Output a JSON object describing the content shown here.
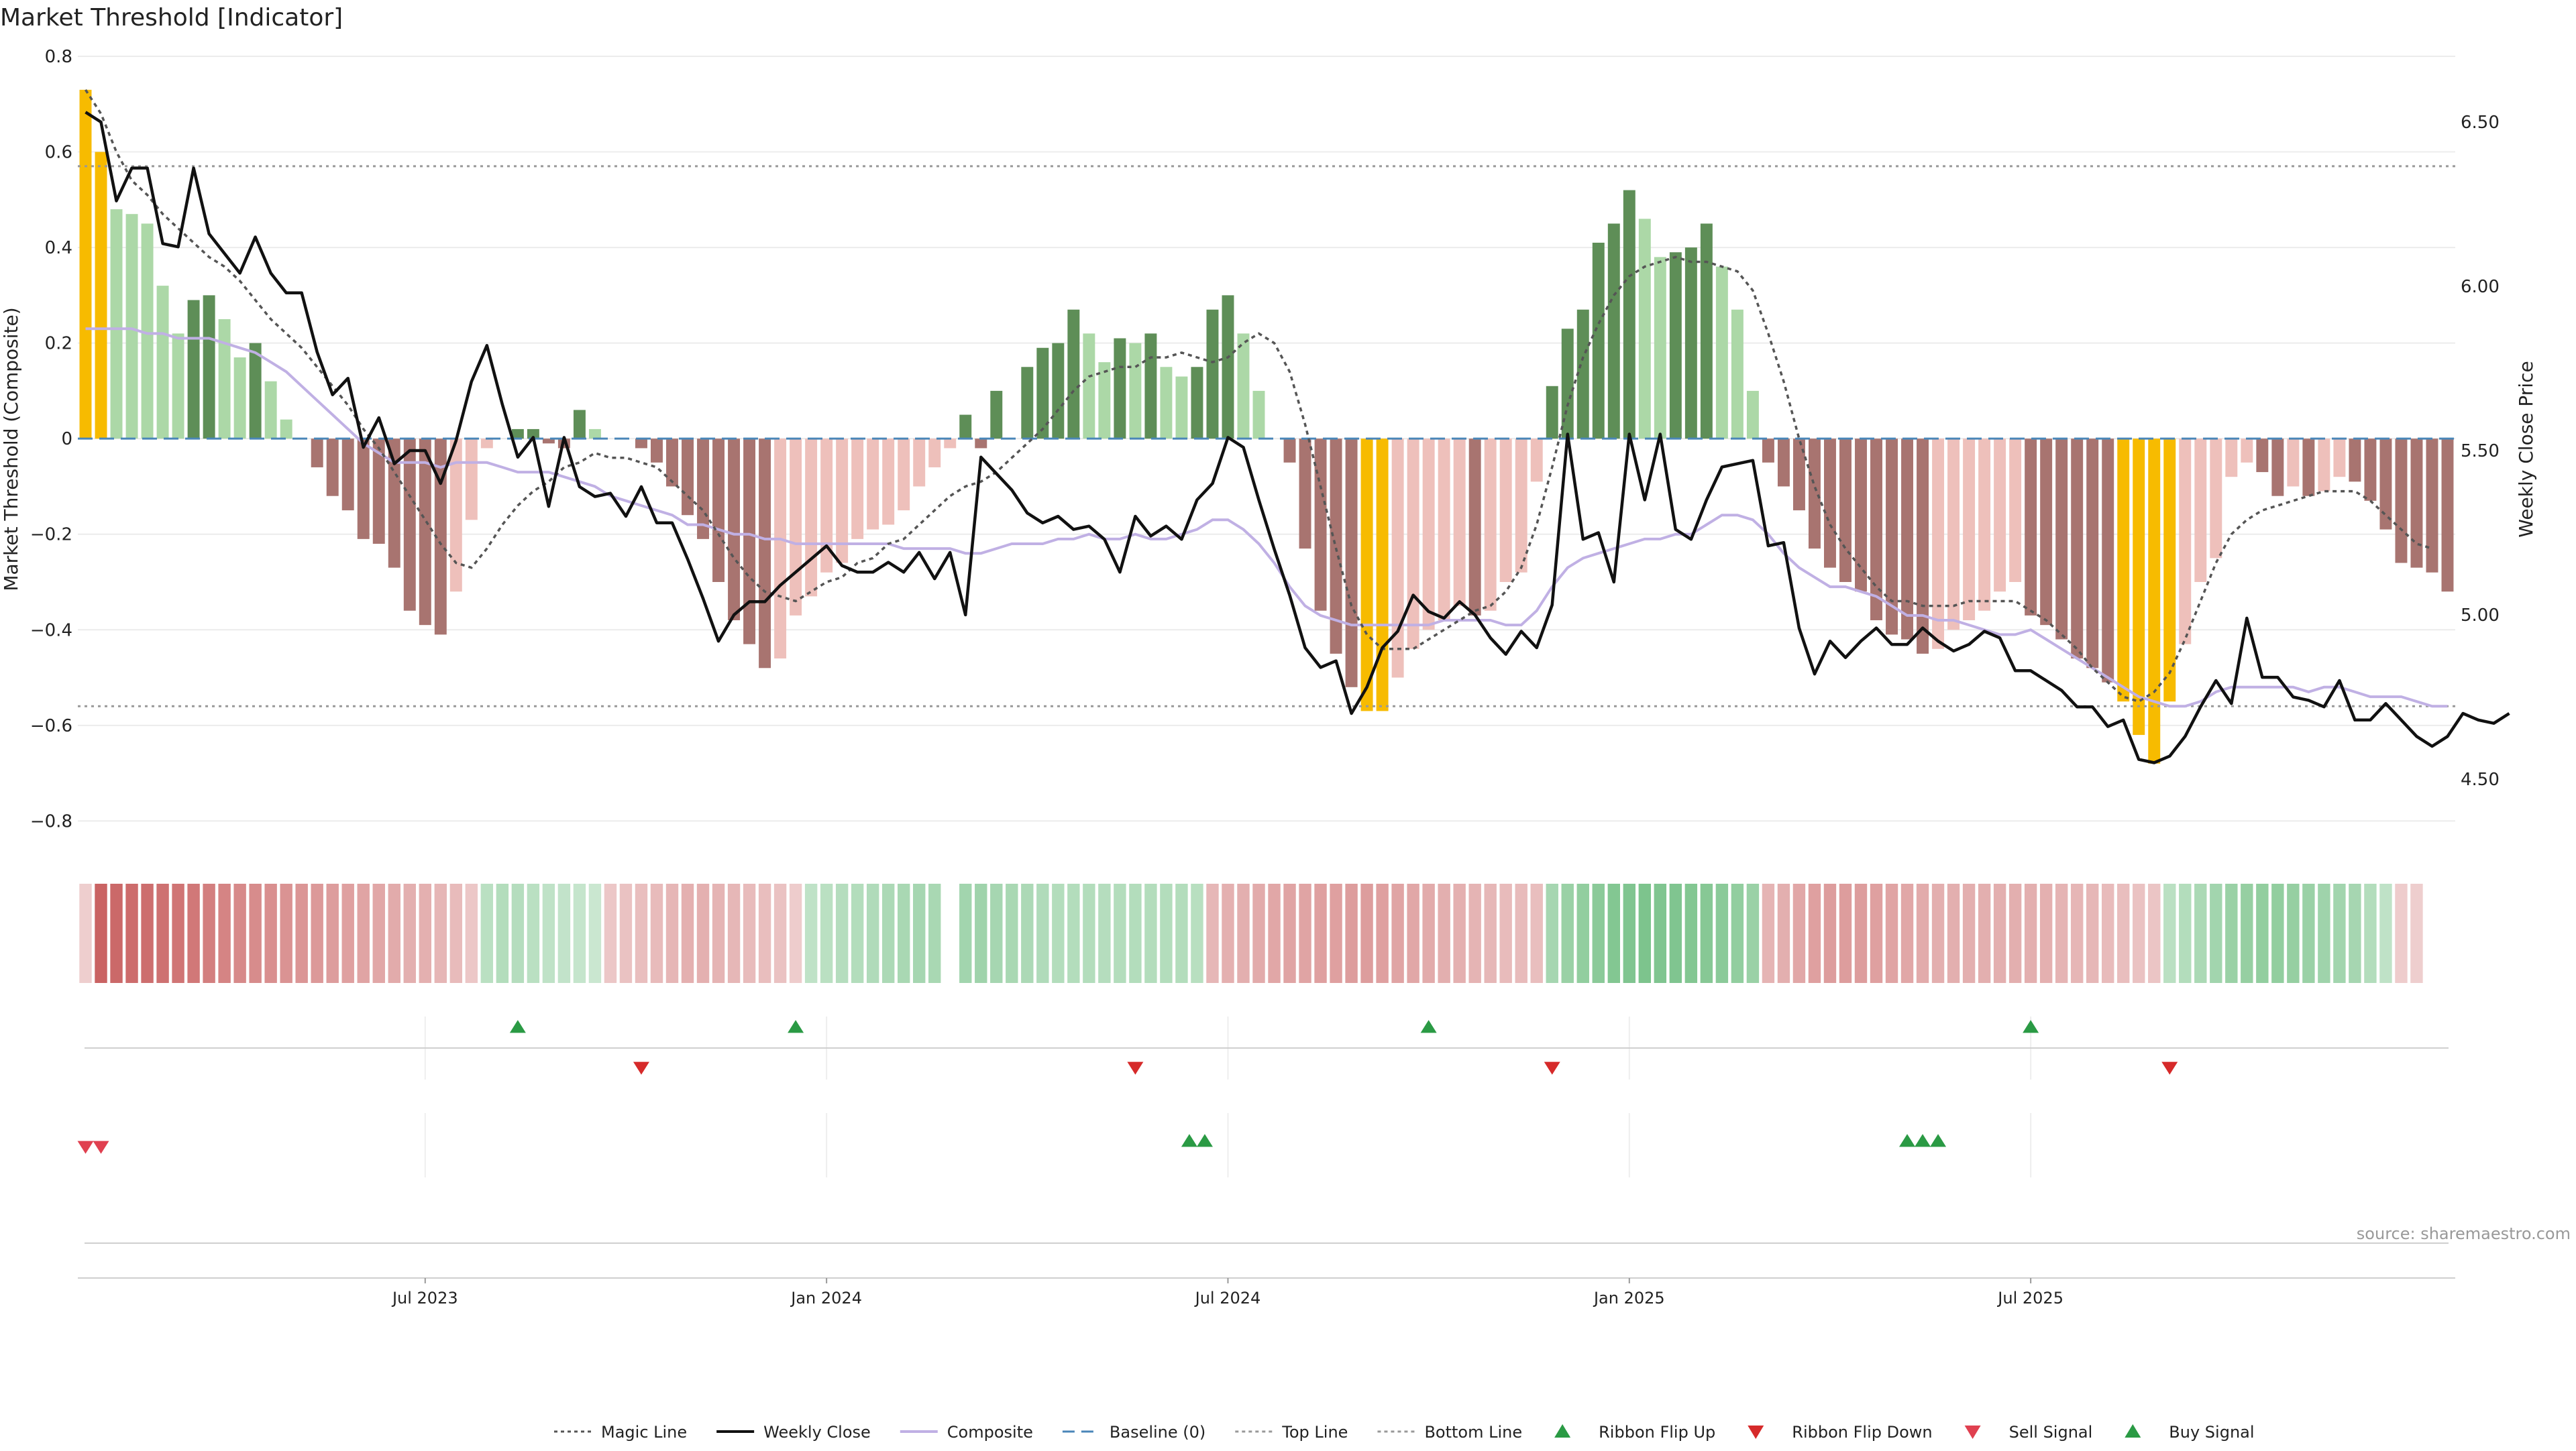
{
  "chart_data": {
    "type": "bar",
    "title": "Market Threshold [Indicator]",
    "ylabel_left": "Market Threshold (Composite)",
    "ylabel_right": "Weekly Close Price",
    "source": "source: sharemaestro.com",
    "ylim_left": [
      -0.85,
      0.8
    ],
    "ylim_right": [
      4.3,
      6.7
    ],
    "yticks_left": [
      "0.8",
      "0.6",
      "0.4",
      "0.2",
      "0",
      "−0.2",
      "−0.4",
      "−0.6",
      "−0.8"
    ],
    "yticks_right": [
      "6.50",
      "6.00",
      "5.50",
      "5.00",
      "4.50"
    ],
    "xticks": [
      {
        "label": "Jul 2023",
        "week": 22
      },
      {
        "label": "Jan 2024",
        "week": 48
      },
      {
        "label": "Jul 2024",
        "week": 74
      },
      {
        "label": "Jan 2025",
        "week": 100
      },
      {
        "label": "Jul 2025",
        "week": 126
      }
    ],
    "top_line": 0.57,
    "bottom_line": -0.56,
    "baseline": 0,
    "composite_bars": [
      0.73,
      0.6,
      0.48,
      0.47,
      0.45,
      0.32,
      0.22,
      0.29,
      0.3,
      0.25,
      0.17,
      0.2,
      0.12,
      0.04,
      0.0,
      -0.06,
      -0.12,
      -0.15,
      -0.21,
      -0.22,
      -0.27,
      -0.36,
      -0.39,
      -0.41,
      -0.32,
      -0.17,
      -0.02,
      0.0,
      0.02,
      0.02,
      -0.01,
      -0.02,
      0.06,
      0.02,
      0.0,
      0.0,
      -0.02,
      -0.05,
      -0.1,
      -0.16,
      -0.21,
      -0.3,
      -0.38,
      -0.43,
      -0.48,
      -0.46,
      -0.37,
      -0.33,
      -0.28,
      -0.26,
      -0.21,
      -0.19,
      -0.18,
      -0.15,
      -0.1,
      -0.06,
      -0.02,
      0.05,
      -0.02,
      0.1,
      0.0,
      0.15,
      0.19,
      0.2,
      0.27,
      0.22,
      0.16,
      0.21,
      0.2,
      0.22,
      0.15,
      0.13,
      0.15,
      0.27,
      0.3,
      0.22,
      0.1,
      0.0,
      -0.05,
      -0.23,
      -0.36,
      -0.45,
      -0.52,
      -0.57,
      -0.57,
      -0.5,
      -0.44,
      -0.4,
      -0.38,
      -0.35,
      -0.37,
      -0.36,
      -0.3,
      -0.28,
      -0.09,
      0.11,
      0.23,
      0.27,
      0.41,
      0.45,
      0.52,
      0.46,
      0.38,
      0.39,
      0.4,
      0.45,
      0.36,
      0.27,
      0.1,
      -0.05,
      -0.1,
      -0.15,
      -0.23,
      -0.27,
      -0.3,
      -0.32,
      -0.38,
      -0.41,
      -0.42,
      -0.45,
      -0.44,
      -0.4,
      -0.38,
      -0.36,
      -0.32,
      -0.3,
      -0.37,
      -0.39,
      -0.42,
      -0.46,
      -0.48,
      -0.51,
      -0.55,
      -0.62,
      -0.68,
      -0.55,
      -0.43,
      -0.3,
      -0.25,
      -0.08,
      -0.05,
      -0.07,
      -0.12,
      -0.1,
      -0.12,
      -0.11,
      -0.08,
      -0.09,
      -0.13,
      -0.19,
      -0.26,
      -0.27,
      -0.28,
      -0.32
    ],
    "series": [
      {
        "name": "Weekly Close",
        "values": [
          6.53,
          6.5,
          6.26,
          6.36,
          6.36,
          6.13,
          6.12,
          6.36,
          6.16,
          6.1,
          6.04,
          6.15,
          6.04,
          5.98,
          5.98,
          5.8,
          5.67,
          5.72,
          5.51,
          5.6,
          5.46,
          5.5,
          5.5,
          5.4,
          5.53,
          5.71,
          5.82,
          5.64,
          5.48,
          5.54,
          5.33,
          5.54,
          5.39,
          5.36,
          5.37,
          5.3,
          5.39,
          5.28,
          5.28,
          5.17,
          5.05,
          4.92,
          5.0,
          5.04,
          5.04,
          5.09,
          5.13,
          5.17,
          5.21,
          5.15,
          5.13,
          5.13,
          5.16,
          5.13,
          5.19,
          5.11,
          5.19,
          5.0,
          5.48,
          5.43,
          5.38,
          5.31,
          5.28,
          5.3,
          5.26,
          5.27,
          5.23,
          5.13,
          5.3,
          5.24,
          5.27,
          5.23,
          5.35,
          5.4,
          5.54,
          5.51,
          5.35,
          5.2,
          5.06,
          4.9,
          4.84,
          4.86,
          4.7,
          4.78,
          4.9,
          4.95,
          5.06,
          5.01,
          4.99,
          5.04,
          5.0,
          4.93,
          4.88,
          4.95,
          4.9,
          5.03,
          5.55,
          5.23,
          5.25,
          5.1,
          5.55,
          5.35,
          5.55,
          5.26,
          5.23,
          5.35,
          5.45,
          5.46,
          5.47,
          5.21,
          5.22,
          4.96,
          4.82,
          4.92,
          4.87,
          4.92,
          4.96,
          4.91,
          4.91,
          4.96,
          4.92,
          4.89,
          4.91,
          4.95,
          4.93,
          4.83,
          4.83,
          4.8,
          4.77,
          4.72,
          4.72,
          4.66,
          4.68,
          4.56,
          4.55,
          4.57,
          4.63,
          4.72,
          4.8,
          4.73,
          4.99,
          4.81,
          4.81,
          4.75,
          4.74,
          4.72,
          4.8,
          4.68,
          4.68,
          4.73,
          4.68,
          4.63,
          4.6,
          4.63,
          4.7,
          4.68,
          4.67,
          4.7
        ]
      },
      {
        "name": "Magic Line",
        "values": [
          0.73,
          0.68,
          0.6,
          0.54,
          0.51,
          0.47,
          0.44,
          0.41,
          0.38,
          0.36,
          0.33,
          0.29,
          0.25,
          0.22,
          0.19,
          0.15,
          0.11,
          0.07,
          0.02,
          -0.02,
          -0.07,
          -0.12,
          -0.17,
          -0.22,
          -0.26,
          -0.27,
          -0.23,
          -0.18,
          -0.14,
          -0.11,
          -0.09,
          -0.06,
          -0.05,
          -0.03,
          -0.04,
          -0.04,
          -0.05,
          -0.06,
          -0.09,
          -0.12,
          -0.15,
          -0.2,
          -0.25,
          -0.29,
          -0.32,
          -0.33,
          -0.34,
          -0.32,
          -0.3,
          -0.29,
          -0.26,
          -0.25,
          -0.22,
          -0.21,
          -0.18,
          -0.15,
          -0.12,
          -0.1,
          -0.09,
          -0.07,
          -0.04,
          -0.01,
          0.02,
          0.06,
          0.1,
          0.13,
          0.14,
          0.15,
          0.15,
          0.17,
          0.17,
          0.18,
          0.17,
          0.16,
          0.17,
          0.2,
          0.22,
          0.2,
          0.14,
          0.03,
          -0.1,
          -0.23,
          -0.35,
          -0.41,
          -0.44,
          -0.44,
          -0.44,
          -0.42,
          -0.4,
          -0.38,
          -0.36,
          -0.35,
          -0.32,
          -0.27,
          -0.18,
          -0.06,
          0.07,
          0.17,
          0.24,
          0.3,
          0.34,
          0.36,
          0.37,
          0.38,
          0.37,
          0.37,
          0.36,
          0.35,
          0.31,
          0.22,
          0.12,
          0.0,
          -0.1,
          -0.18,
          -0.23,
          -0.27,
          -0.31,
          -0.34,
          -0.34,
          -0.35,
          -0.35,
          -0.35,
          -0.34,
          -0.34,
          -0.34,
          -0.34,
          -0.36,
          -0.38,
          -0.41,
          -0.44,
          -0.48,
          -0.51,
          -0.54,
          -0.55,
          -0.53,
          -0.49,
          -0.42,
          -0.34,
          -0.26,
          -0.2,
          -0.17,
          -0.15,
          -0.14,
          -0.13,
          -0.12,
          -0.11,
          -0.11,
          -0.11,
          -0.13,
          -0.16,
          -0.19,
          -0.22,
          -0.23
        ]
      },
      {
        "name": "Composite",
        "values": [
          0.23,
          0.23,
          0.23,
          0.23,
          0.22,
          0.22,
          0.21,
          0.21,
          0.21,
          0.2,
          0.19,
          0.18,
          0.16,
          0.14,
          0.11,
          0.08,
          0.05,
          0.02,
          -0.01,
          -0.03,
          -0.05,
          -0.05,
          -0.05,
          -0.06,
          -0.05,
          -0.05,
          -0.05,
          -0.06,
          -0.07,
          -0.07,
          -0.07,
          -0.08,
          -0.09,
          -0.1,
          -0.12,
          -0.13,
          -0.14,
          -0.15,
          -0.16,
          -0.18,
          -0.18,
          -0.19,
          -0.2,
          -0.2,
          -0.21,
          -0.21,
          -0.22,
          -0.22,
          -0.22,
          -0.22,
          -0.22,
          -0.22,
          -0.22,
          -0.23,
          -0.23,
          -0.23,
          -0.23,
          -0.24,
          -0.24,
          -0.23,
          -0.22,
          -0.22,
          -0.22,
          -0.21,
          -0.21,
          -0.2,
          -0.21,
          -0.21,
          -0.2,
          -0.21,
          -0.21,
          -0.2,
          -0.19,
          -0.17,
          -0.17,
          -0.19,
          -0.22,
          -0.26,
          -0.31,
          -0.35,
          -0.37,
          -0.38,
          -0.39,
          -0.39,
          -0.39,
          -0.39,
          -0.39,
          -0.39,
          -0.38,
          -0.38,
          -0.38,
          -0.38,
          -0.39,
          -0.39,
          -0.36,
          -0.31,
          -0.27,
          -0.25,
          -0.24,
          -0.23,
          -0.22,
          -0.21,
          -0.21,
          -0.2,
          -0.2,
          -0.18,
          -0.16,
          -0.16,
          -0.17,
          -0.2,
          -0.24,
          -0.27,
          -0.29,
          -0.31,
          -0.31,
          -0.32,
          -0.33,
          -0.35,
          -0.37,
          -0.37,
          -0.38,
          -0.38,
          -0.39,
          -0.4,
          -0.41,
          -0.41,
          -0.4,
          -0.42,
          -0.44,
          -0.46,
          -0.48,
          -0.5,
          -0.52,
          -0.54,
          -0.55,
          -0.56,
          -0.56,
          -0.55,
          -0.53,
          -0.52,
          -0.52,
          -0.52,
          -0.52,
          -0.52,
          -0.53,
          -0.52,
          -0.52,
          -0.53,
          -0.54,
          -0.54,
          -0.54,
          -0.55,
          -0.56,
          -0.56
        ]
      }
    ],
    "ribbon": [
      -0.1,
      -0.75,
      -0.72,
      -0.7,
      -0.68,
      -0.66,
      -0.64,
      -0.62,
      -0.58,
      -0.55,
      -0.52,
      -0.5,
      -0.48,
      -0.46,
      -0.44,
      -0.42,
      -0.4,
      -0.38,
      -0.36,
      -0.34,
      -0.32,
      -0.3,
      -0.28,
      -0.25,
      -0.22,
      -0.15,
      0.25,
      0.3,
      0.28,
      0.25,
      0.22,
      0.2,
      0.18,
      0.15,
      -0.15,
      -0.18,
      -0.2,
      -0.22,
      -0.25,
      -0.28,
      -0.28,
      -0.26,
      -0.24,
      -0.22,
      -0.2,
      -0.18,
      -0.12,
      0.22,
      0.25,
      0.28,
      0.3,
      0.32,
      0.34,
      0.36,
      0.38,
      0.36,
      null,
      0.4,
      0.42,
      0.38,
      0.36,
      0.34,
      0.32,
      0.3,
      0.3,
      0.3,
      0.28,
      0.3,
      0.3,
      0.3,
      0.3,
      0.3,
      0.26,
      -0.24,
      -0.28,
      -0.3,
      -0.32,
      -0.34,
      -0.36,
      -0.36,
      -0.38,
      -0.38,
      -0.4,
      -0.4,
      -0.38,
      -0.36,
      -0.34,
      -0.32,
      -0.3,
      -0.28,
      -0.26,
      -0.24,
      -0.22,
      -0.22,
      -0.2,
      0.38,
      0.45,
      0.5,
      0.55,
      0.6,
      0.62,
      0.64,
      0.62,
      0.62,
      0.6,
      0.58,
      0.55,
      0.5,
      0.45,
      -0.26,
      -0.3,
      -0.34,
      -0.38,
      -0.4,
      -0.4,
      -0.4,
      -0.38,
      -0.36,
      -0.34,
      -0.32,
      -0.3,
      -0.3,
      -0.3,
      -0.3,
      -0.3,
      -0.3,
      -0.3,
      -0.28,
      -0.26,
      -0.25,
      -0.24,
      -0.22,
      -0.2,
      -0.18,
      -0.16,
      0.25,
      0.3,
      0.35,
      0.4,
      0.45,
      0.48,
      0.5,
      0.5,
      0.48,
      0.45,
      0.42,
      0.4,
      0.38,
      0.3,
      0.22,
      -0.12,
      -0.1
    ],
    "ribbon_flip_up": [
      28,
      46,
      87,
      126
    ],
    "ribbon_flip_down": [
      36,
      68,
      95,
      135
    ],
    "sell_signal": [
      0,
      1
    ],
    "buy_signal": [
      71.5,
      72.5,
      118,
      119,
      120
    ],
    "colors": {
      "bar_strong_pos": "#5e8e57",
      "bar_weak_pos": "#acd8a7",
      "bar_strong_neg": "#a87470",
      "bar_weak_neg": "#eec0bb",
      "bar_extreme": "#f7bb00",
      "weekly_close": "#111111",
      "magic_line": "#555555",
      "composite": "#c0b0e4",
      "baseline": "#4a86b8",
      "threshold_lines": "#999999",
      "ribbon_flip_up": "#2a9a44",
      "ribbon_flip_down": "#d62a2a",
      "sell_signal": "#e04050",
      "buy_signal": "#2a9a44"
    },
    "legend": {
      "position": "bottom-center",
      "entries": [
        {
          "label": "Magic Line",
          "kind": "dotted-line",
          "color": "#555555"
        },
        {
          "label": "Weekly Close",
          "kind": "line",
          "color": "#111111"
        },
        {
          "label": "Composite",
          "kind": "line",
          "color": "#c0b0e4"
        },
        {
          "label": "Baseline (0)",
          "kind": "dashed-line",
          "color": "#4a86b8"
        },
        {
          "label": "Top Line",
          "kind": "dotted-line",
          "color": "#999999"
        },
        {
          "label": "Bottom Line",
          "kind": "dotted-line",
          "color": "#999999"
        },
        {
          "label": "Ribbon Flip Up",
          "kind": "triangle-up",
          "color": "#2a9a44"
        },
        {
          "label": "Ribbon Flip Down",
          "kind": "triangle-down",
          "color": "#d62a2a"
        },
        {
          "label": "Sell Signal",
          "kind": "triangle-down",
          "color": "#e04050"
        },
        {
          "label": "Buy Signal",
          "kind": "triangle-up",
          "color": "#2a9a44"
        }
      ]
    },
    "grid": true
  }
}
